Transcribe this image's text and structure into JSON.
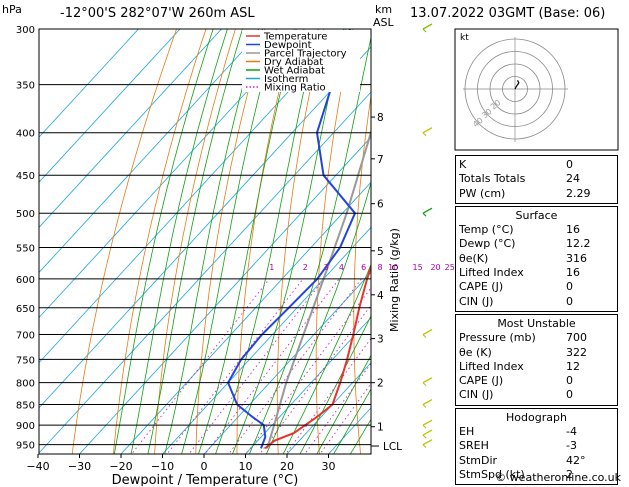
{
  "header": {
    "pressure_unit": "hPa",
    "location": "-12°00'S 282°07'W 260m ASL",
    "height_unit_line1": "km",
    "height_unit_line2": "ASL",
    "datetime": "13.07.2022 03GMT (Base: 06)"
  },
  "chart_data": {
    "type": "skew-t log-p",
    "xlabel": "Dewpoint / Temperature (°C)",
    "mixing_ratio_label": "Mixing Ratio (g/kg)",
    "pressure_levels": [
      300,
      350,
      400,
      450,
      500,
      550,
      600,
      650,
      700,
      750,
      800,
      850,
      900,
      950
    ],
    "temperature_ticks": [
      -40,
      -30,
      -20,
      -10,
      0,
      10,
      20,
      30
    ],
    "height_ticks": [
      {
        "km": "8",
        "p": 383
      },
      {
        "km": "7",
        "p": 430
      },
      {
        "km": "6",
        "p": 487
      },
      {
        "km": "5",
        "p": 555
      },
      {
        "km": "4",
        "p": 627
      },
      {
        "km": "3",
        "p": 708
      },
      {
        "km": "2",
        "p": 800
      },
      {
        "km": "1",
        "p": 904
      }
    ],
    "lcl_label": "LCL",
    "lcl_pressure": 925,
    "mixing_ratio_values": [
      "1",
      "2",
      "3",
      "4",
      "6",
      "8",
      "10",
      "15",
      "20",
      "25"
    ],
    "legend": [
      {
        "name": "Temperature",
        "color": "#e8332e",
        "style": "solid"
      },
      {
        "name": "Dewpoint",
        "color": "#2244dd",
        "style": "solid"
      },
      {
        "name": "Parcel Trajectory",
        "color": "#999999",
        "style": "solid"
      },
      {
        "name": "Dry Adiabat",
        "color": "#e87b12",
        "style": "solid"
      },
      {
        "name": "Wet Adiabat",
        "color": "#10a010",
        "style": "solid"
      },
      {
        "name": "Isotherm",
        "color": "#1aa7e0",
        "style": "solid"
      },
      {
        "name": "Mixing Ratio",
        "color": "#cc22cc",
        "style": "dotted"
      }
    ],
    "temperature_profile": [
      {
        "p": 960,
        "t": 13.5
      },
      {
        "p": 940,
        "t": 14
      },
      {
        "p": 920,
        "t": 17
      },
      {
        "p": 900,
        "t": 18
      },
      {
        "p": 880,
        "t": 19
      },
      {
        "p": 850,
        "t": 20
      },
      {
        "p": 800,
        "t": 17
      },
      {
        "p": 750,
        "t": 13.5
      },
      {
        "p": 700,
        "t": 9.5
      },
      {
        "p": 650,
        "t": 5
      },
      {
        "p": 600,
        "t": 0.5
      },
      {
        "p": 550,
        "t": -4
      },
      {
        "p": 500,
        "t": -9.5
      },
      {
        "p": 450,
        "t": -15
      },
      {
        "p": 400,
        "t": -22.5
      },
      {
        "p": 350,
        "t": -32
      },
      {
        "p": 300,
        "t": -42
      }
    ],
    "dewpoint_profile": [
      {
        "p": 960,
        "td": 12.5
      },
      {
        "p": 930,
        "td": 11
      },
      {
        "p": 900,
        "td": 8
      },
      {
        "p": 880,
        "td": 3.5
      },
      {
        "p": 850,
        "td": -3
      },
      {
        "p": 800,
        "td": -10
      },
      {
        "p": 750,
        "td": -12
      },
      {
        "p": 700,
        "td": -12.5
      },
      {
        "p": 650,
        "td": -12
      },
      {
        "p": 600,
        "td": -11.5
      },
      {
        "p": 550,
        "td": -13
      },
      {
        "p": 500,
        "td": -17
      },
      {
        "p": 450,
        "td": -33
      },
      {
        "p": 400,
        "td": -44
      },
      {
        "p": 350,
        "td": -51
      },
      {
        "p": 300,
        "td": -59
      }
    ],
    "parcel_profile": [
      {
        "p": 960,
        "t": 14
      },
      {
        "p": 900,
        "t": 10.5
      },
      {
        "p": 800,
        "t": 4
      },
      {
        "p": 700,
        "t": -2.5
      },
      {
        "p": 600,
        "t": -10
      },
      {
        "p": 500,
        "t": -19
      },
      {
        "p": 400,
        "t": -31
      },
      {
        "p": 300,
        "t": -47
      }
    ],
    "wind_barbs": [
      {
        "p": 300,
        "color": "#7fc000"
      },
      {
        "p": 400,
        "color": "#c0c000"
      },
      {
        "p": 500,
        "color": "#10a010"
      },
      {
        "p": 700,
        "color": "#c0c000"
      },
      {
        "p": 800,
        "color": "#c0c000"
      },
      {
        "p": 850,
        "color": "#c0c000"
      },
      {
        "p": 900,
        "color": "#c0c000"
      },
      {
        "p": 925,
        "color": "#c0c000"
      },
      {
        "p": 950,
        "color": "#c0c000"
      }
    ],
    "hodograph": {
      "unit_label": "kt",
      "rings": [
        10,
        20,
        30,
        40
      ],
      "ring_labels": [
        "10",
        "20",
        "30",
        "40"
      ],
      "trace_u_v": [
        [
          0,
          0
        ],
        [
          1,
          2
        ],
        [
          3,
          5
        ],
        [
          2,
          7
        ]
      ]
    }
  },
  "indices": {
    "basic": [
      {
        "label": "K",
        "value": "0"
      },
      {
        "label": "Totals Totals",
        "value": "24"
      },
      {
        "label": "PW (cm)",
        "value": "2.29"
      }
    ],
    "surface_title": "Surface",
    "surface": [
      {
        "label": "Temp (°C)",
        "value": "16"
      },
      {
        "label": "Dewp (°C)",
        "value": "12.2"
      },
      {
        "label": "θe(K)",
        "value": "316"
      },
      {
        "label": "Lifted Index",
        "value": "16"
      },
      {
        "label": "CAPE (J)",
        "value": "0"
      },
      {
        "label": "CIN (J)",
        "value": "0"
      }
    ],
    "unstable_title": "Most Unstable",
    "unstable": [
      {
        "label": "Pressure (mb)",
        "value": "700"
      },
      {
        "label": "θe (K)",
        "value": "322"
      },
      {
        "label": "Lifted Index",
        "value": "12"
      },
      {
        "label": "CAPE (J)",
        "value": "0"
      },
      {
        "label": "CIN (J)",
        "value": "0"
      }
    ],
    "hodo_title": "Hodograph",
    "hodo": [
      {
        "label": "EH",
        "value": "-4"
      },
      {
        "label": "SREH",
        "value": "-3"
      },
      {
        "label": "StmDir",
        "value": "42°"
      },
      {
        "label": "StmSpd (kt)",
        "value": "2"
      }
    ]
  },
  "footer": "© weatheronline.co.uk"
}
